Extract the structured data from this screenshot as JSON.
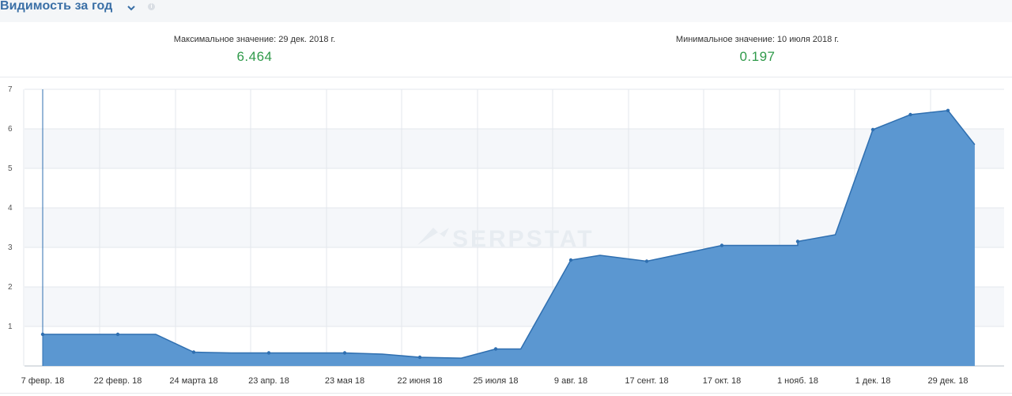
{
  "header": {
    "title": "Видимость за год",
    "chevron_icon": "chevron-down-icon",
    "info_icon": "info-icon"
  },
  "stats": {
    "max_label": "Максимальное значение: 29 дек. 2018 г.",
    "max_value": "6.464",
    "min_label": "Минимальное значение: 10 июля 2018 г.",
    "min_value": "0.197"
  },
  "watermark": "SERPSTAT",
  "colors": {
    "title": "#3a6fa6",
    "value": "#2f9a4a",
    "area_fill": "#5b97d1",
    "line": "#2f6fb0"
  },
  "chart_data": {
    "type": "area",
    "title": "",
    "xlabel": "",
    "ylabel": "",
    "ylim": [
      0,
      7
    ],
    "yticks": [
      1,
      2,
      3,
      4,
      5,
      6,
      7
    ],
    "grid": true,
    "legend": "none",
    "x_tick_labels": [
      "7 февр. 18",
      "22 февр. 18",
      "24 марта 18",
      "23 апр. 18",
      "23 мая 18",
      "22 июня 18",
      "25 июля 18",
      "9 авг. 18",
      "17 сент. 18",
      "17 окт. 18",
      "1 нояб. 18",
      "1 дек. 18",
      "29 дек. 18"
    ],
    "series": [
      {
        "x": [
          "2018-02-07",
          "2018-02-22",
          "2018-03-09",
          "2018-03-24",
          "2018-04-08",
          "2018-04-23",
          "2018-05-08",
          "2018-05-23",
          "2018-06-07",
          "2018-06-22",
          "2018-07-10",
          "2018-07-25",
          "2018-07-30",
          "2018-08-09",
          "2018-08-24",
          "2018-09-17",
          "2018-10-02",
          "2018-10-17",
          "2018-11-01",
          "2018-11-01",
          "2018-11-16",
          "2018-12-01",
          "2018-12-15",
          "2018-12-29",
          "2019-01-08"
        ],
        "values": [
          0.8,
          0.8,
          0.8,
          0.35,
          0.33,
          0.33,
          0.33,
          0.33,
          0.3,
          0.22,
          0.197,
          0.43,
          0.43,
          2.68,
          2.8,
          2.65,
          2.85,
          3.05,
          3.05,
          3.15,
          3.32,
          5.98,
          6.36,
          6.464,
          5.6
        ]
      }
    ]
  }
}
